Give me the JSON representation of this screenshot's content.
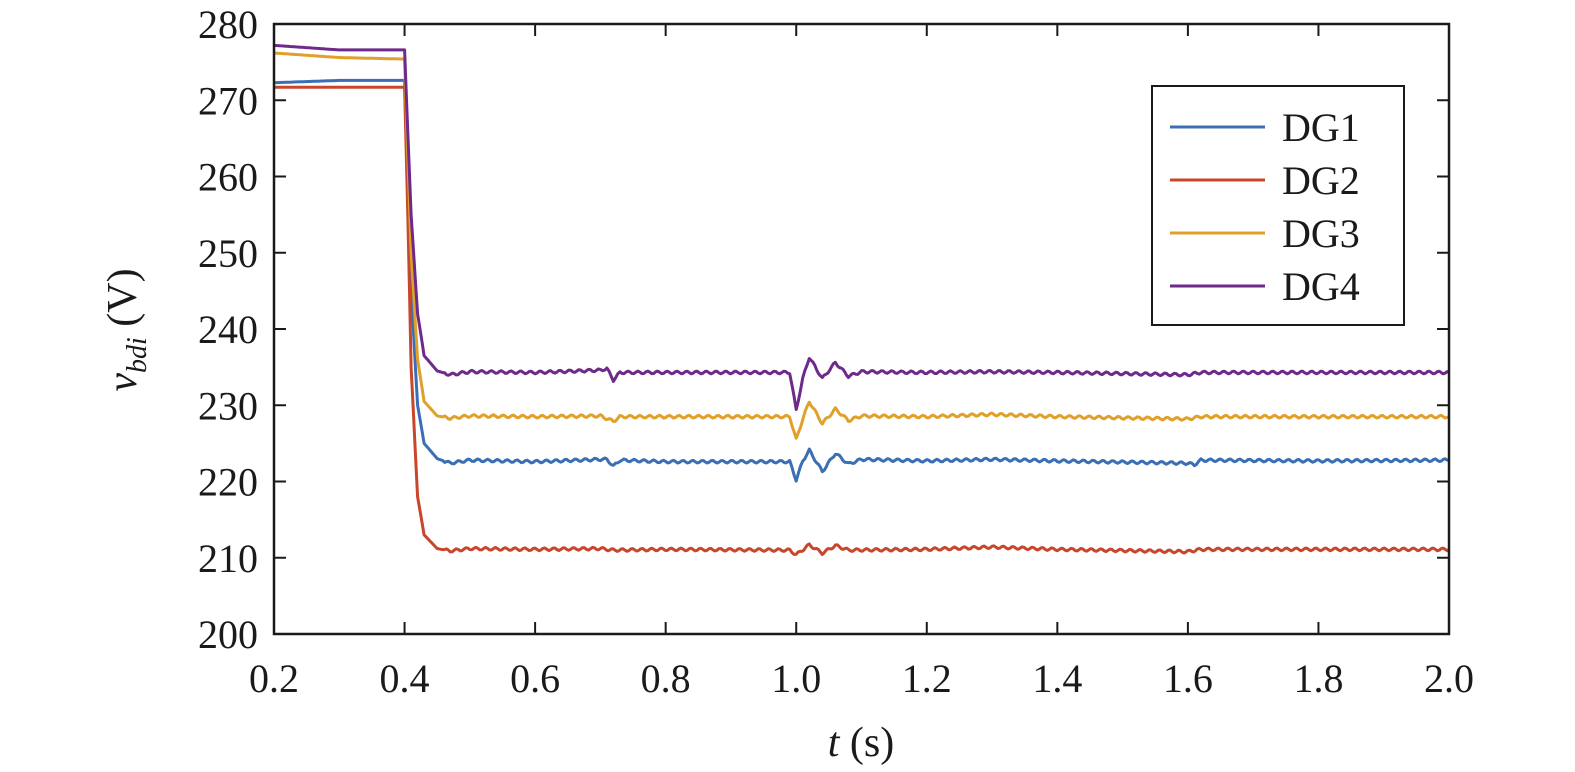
{
  "chart_data": {
    "type": "line",
    "xlabel_var": "t",
    "xlabel_unit": " (s)",
    "ylabel_var": "v",
    "ylabel_sub": "bdi",
    "ylabel_unit": " (V)",
    "xlim": [
      0.2,
      2.0
    ],
    "ylim": [
      200,
      280
    ],
    "xticks": [
      0.2,
      0.4,
      0.6,
      0.8,
      1.0,
      1.2,
      1.4,
      1.6,
      1.8,
      2.0
    ],
    "xtick_labels": [
      "0.2",
      "0.4",
      "0.6",
      "0.8",
      "1.0",
      "1.2",
      "1.4",
      "1.6",
      "1.8",
      "2.0"
    ],
    "yticks": [
      200,
      210,
      220,
      230,
      240,
      250,
      260,
      270,
      280
    ],
    "ytick_labels": [
      "200",
      "210",
      "220",
      "230",
      "240",
      "250",
      "260",
      "270",
      "280"
    ],
    "grid": false,
    "legend_position": "top-right",
    "series": [
      {
        "name": "DG1",
        "color": "#3a6fb5",
        "points": [
          [
            0.2,
            272.3
          ],
          [
            0.3,
            272.6
          ],
          [
            0.4,
            272.6
          ],
          [
            0.41,
            245
          ],
          [
            0.42,
            230
          ],
          [
            0.43,
            225
          ],
          [
            0.45,
            223
          ],
          [
            0.47,
            222.4
          ],
          [
            0.5,
            222.8
          ],
          [
            0.6,
            222.6
          ],
          [
            0.7,
            222.9
          ],
          [
            0.71,
            222.9
          ],
          [
            0.72,
            222
          ],
          [
            0.73,
            222.8
          ],
          [
            0.8,
            222.6
          ],
          [
            0.9,
            222.6
          ],
          [
            0.99,
            222.6
          ],
          [
            1.0,
            220.2
          ],
          [
            1.01,
            222.7
          ],
          [
            1.02,
            224.1
          ],
          [
            1.04,
            221.3
          ],
          [
            1.06,
            223.7
          ],
          [
            1.08,
            222.3
          ],
          [
            1.1,
            222.9
          ],
          [
            1.2,
            222.7
          ],
          [
            1.3,
            222.9
          ],
          [
            1.4,
            222.7
          ],
          [
            1.6,
            222.4
          ],
          [
            1.61,
            222.2
          ],
          [
            1.62,
            222.8
          ],
          [
            1.8,
            222.7
          ],
          [
            2.0,
            222.8
          ]
        ]
      },
      {
        "name": "DG2",
        "color": "#c8462b",
        "points": [
          [
            0.2,
            271.7
          ],
          [
            0.3,
            271.7
          ],
          [
            0.4,
            271.7
          ],
          [
            0.405,
            255
          ],
          [
            0.41,
            235
          ],
          [
            0.42,
            218
          ],
          [
            0.43,
            213
          ],
          [
            0.45,
            211.2
          ],
          [
            0.47,
            210.9
          ],
          [
            0.5,
            211.2
          ],
          [
            0.6,
            211.1
          ],
          [
            0.7,
            211.2
          ],
          [
            0.72,
            211.0
          ],
          [
            0.8,
            211.1
          ],
          [
            0.99,
            211.0
          ],
          [
            1.0,
            210.4
          ],
          [
            1.02,
            211.7
          ],
          [
            1.04,
            210.6
          ],
          [
            1.06,
            211.6
          ],
          [
            1.08,
            211.0
          ],
          [
            1.2,
            211.1
          ],
          [
            1.3,
            211.4
          ],
          [
            1.4,
            211.1
          ],
          [
            1.6,
            210.8
          ],
          [
            1.62,
            211.1
          ],
          [
            1.8,
            211.1
          ],
          [
            2.0,
            211.1
          ]
        ]
      },
      {
        "name": "DG3",
        "color": "#e0a02a",
        "points": [
          [
            0.2,
            276.2
          ],
          [
            0.3,
            275.6
          ],
          [
            0.4,
            275.4
          ],
          [
            0.41,
            250
          ],
          [
            0.42,
            236
          ],
          [
            0.43,
            230.5
          ],
          [
            0.45,
            228.6
          ],
          [
            0.47,
            228.3
          ],
          [
            0.5,
            228.6
          ],
          [
            0.6,
            228.5
          ],
          [
            0.7,
            228.6
          ],
          [
            0.72,
            227.9
          ],
          [
            0.73,
            228.5
          ],
          [
            0.8,
            228.5
          ],
          [
            0.99,
            228.5
          ],
          [
            1.0,
            225.5
          ],
          [
            1.01,
            228.2
          ],
          [
            1.02,
            230.5
          ],
          [
            1.04,
            227.6
          ],
          [
            1.06,
            229.5
          ],
          [
            1.08,
            228.0
          ],
          [
            1.1,
            228.6
          ],
          [
            1.2,
            228.5
          ],
          [
            1.3,
            228.8
          ],
          [
            1.4,
            228.5
          ],
          [
            1.6,
            228.2
          ],
          [
            1.62,
            228.5
          ],
          [
            1.8,
            228.5
          ],
          [
            2.0,
            228.5
          ]
        ]
      },
      {
        "name": "DG4",
        "color": "#6e2a8a",
        "points": [
          [
            0.2,
            277.2
          ],
          [
            0.3,
            276.6
          ],
          [
            0.4,
            276.6
          ],
          [
            0.41,
            255
          ],
          [
            0.42,
            242
          ],
          [
            0.43,
            236.5
          ],
          [
            0.45,
            234.5
          ],
          [
            0.47,
            234.0
          ],
          [
            0.5,
            234.4
          ],
          [
            0.6,
            234.3
          ],
          [
            0.7,
            234.6
          ],
          [
            0.71,
            234.8
          ],
          [
            0.72,
            233.3
          ],
          [
            0.73,
            234.3
          ],
          [
            0.8,
            234.3
          ],
          [
            0.99,
            234.3
          ],
          [
            1.0,
            229.4
          ],
          [
            1.01,
            233.5
          ],
          [
            1.02,
            236.3
          ],
          [
            1.04,
            233.5
          ],
          [
            1.06,
            235.6
          ],
          [
            1.08,
            233.8
          ],
          [
            1.1,
            234.4
          ],
          [
            1.2,
            234.3
          ],
          [
            1.3,
            234.4
          ],
          [
            1.4,
            234.3
          ],
          [
            1.6,
            234.0
          ],
          [
            1.62,
            234.3
          ],
          [
            1.8,
            234.3
          ],
          [
            2.0,
            234.3
          ]
        ]
      }
    ]
  }
}
